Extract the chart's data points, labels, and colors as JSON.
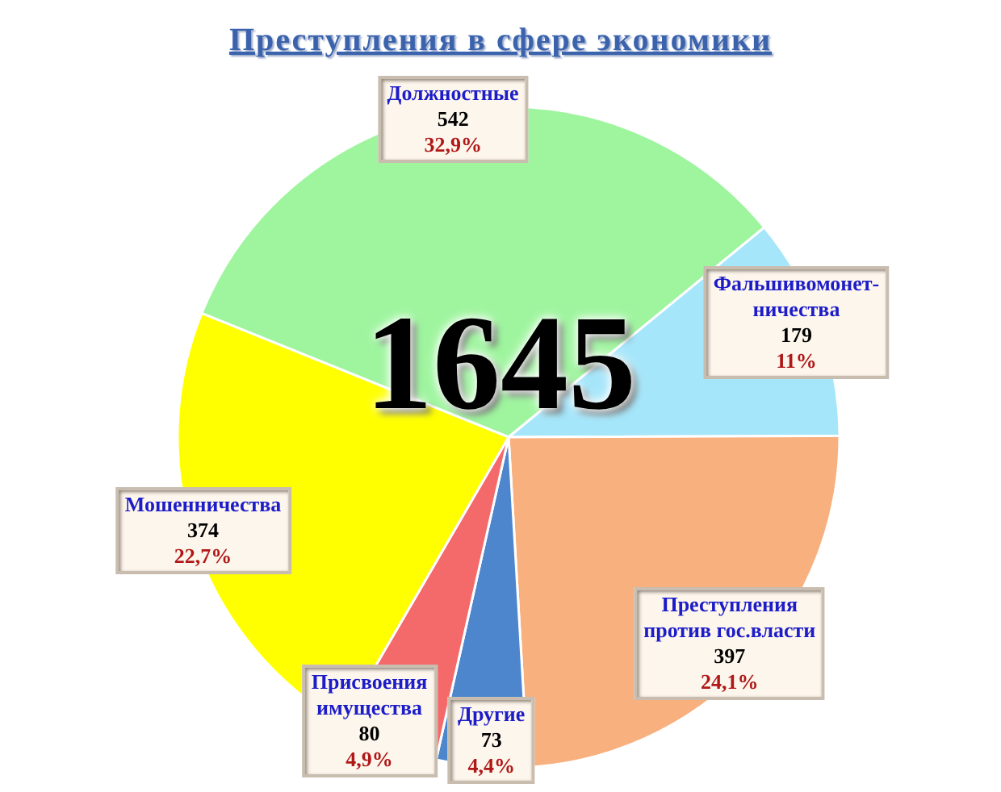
{
  "chart_data": {
    "type": "pie",
    "title": "Преступления в сфере экономики",
    "categories": [
      "Должностные",
      "Фальшивомонет-ничества",
      "Преступления против гос.власти",
      "Другие",
      "Присвоения имущества",
      "Мошенничества"
    ],
    "values": [
      542,
      179,
      397,
      73,
      80,
      374
    ],
    "colors": [
      "#9ef59e",
      "#a6e6fa",
      "#f8b07e",
      "#4d86cc",
      "#f46a6a",
      "#ffff00"
    ],
    "value_labels": [
      "542\n32,9%",
      "179\n11%",
      "397\n24,1%",
      "73\n4,4%",
      "80\n4,9%",
      "374\n22,7%"
    ],
    "annotations": [
      "1645"
    ]
  }
}
